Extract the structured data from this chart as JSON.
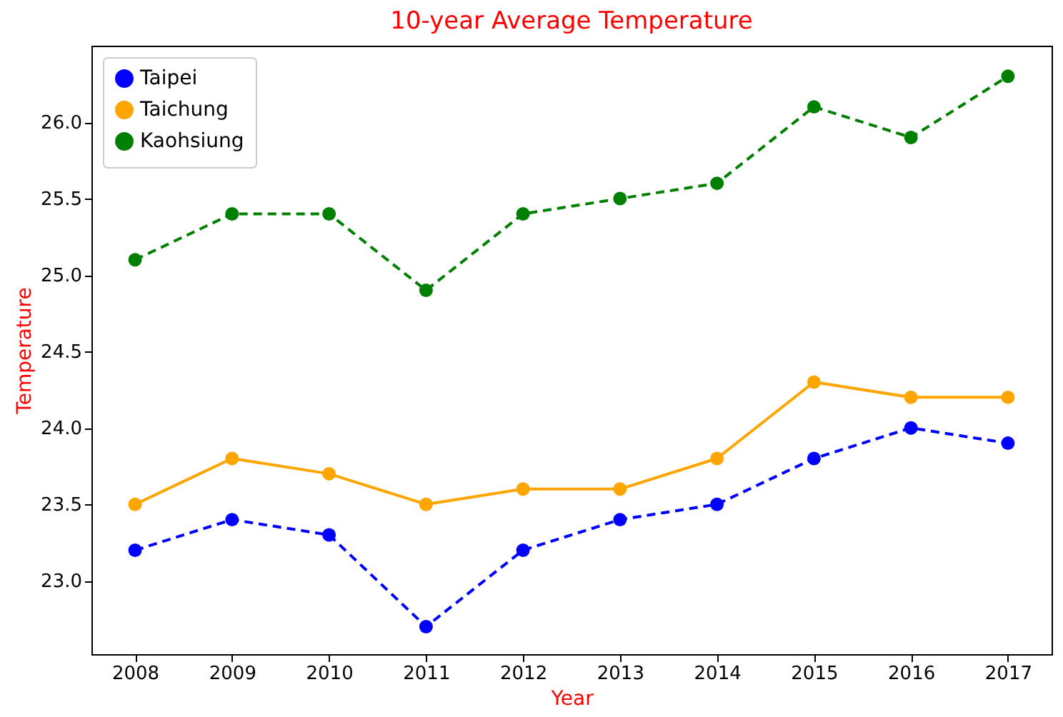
{
  "chart_data": {
    "type": "line",
    "title": "10-year Average Temperature",
    "xlabel": "Year",
    "ylabel": "Temperature",
    "x": [
      2008,
      2009,
      2010,
      2011,
      2012,
      2013,
      2014,
      2015,
      2016,
      2017
    ],
    "series": [
      {
        "name": "Taipei",
        "color": "#0000ff",
        "line_style": "dashed",
        "marker": "circle",
        "values": [
          23.2,
          23.4,
          23.3,
          22.7,
          23.2,
          23.4,
          23.5,
          23.8,
          24.0,
          23.9
        ]
      },
      {
        "name": "Taichung",
        "color": "#ffa500",
        "line_style": "solid",
        "marker": "circle",
        "values": [
          23.5,
          23.8,
          23.7,
          23.5,
          23.6,
          23.6,
          23.8,
          24.3,
          24.2,
          24.2
        ]
      },
      {
        "name": "Kaohsiung",
        "color": "#008000",
        "line_style": "dashed",
        "marker": "circle",
        "values": [
          25.1,
          25.4,
          25.4,
          24.9,
          25.4,
          25.5,
          25.6,
          26.1,
          25.9,
          26.3
        ]
      }
    ],
    "xlim": [
      2007.55,
      2017.45
    ],
    "xticks": [
      2008,
      2009,
      2010,
      2011,
      2012,
      2013,
      2014,
      2015,
      2016,
      2017
    ],
    "ylim": [
      22.52,
      26.5
    ],
    "yticks": [
      {
        "value": 23,
        "label": "23.0"
      },
      {
        "value": 23.5,
        "label": "23.5"
      },
      {
        "value": 24,
        "label": "24.0"
      },
      {
        "value": 24.5,
        "label": "24.5"
      },
      {
        "value": 25,
        "label": "25.0"
      },
      {
        "value": 25.5,
        "label": "25.5"
      },
      {
        "value": 26,
        "label": "26.0"
      }
    ],
    "grid": false,
    "legend": "top left"
  }
}
